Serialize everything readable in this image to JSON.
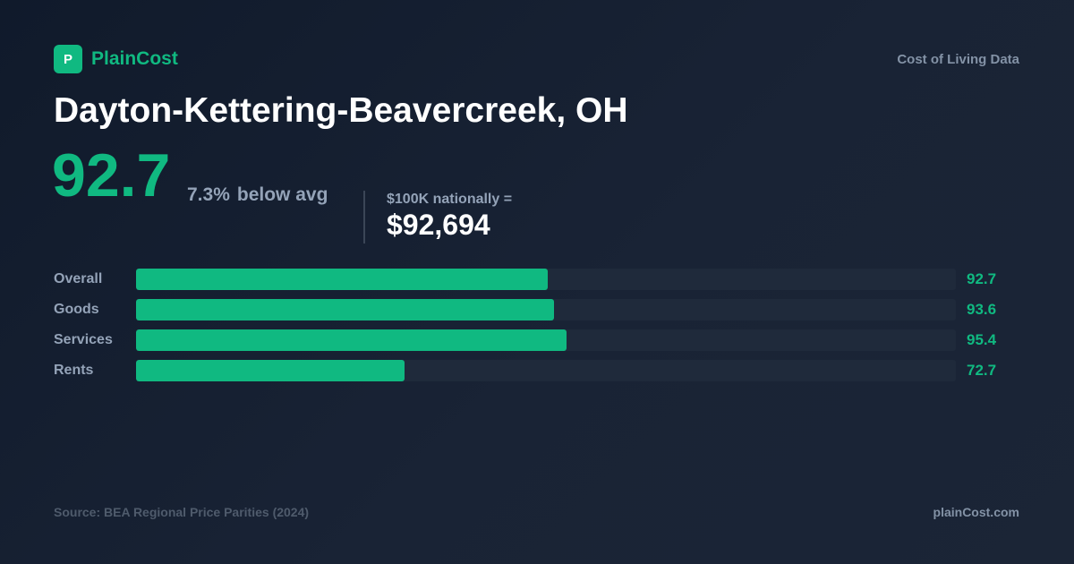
{
  "brand": {
    "logo_letter": "P",
    "name": "PlainCost",
    "tagline": "Cost of Living Data"
  },
  "colors": {
    "accent": "#10b981",
    "background": "#151f30",
    "track": "#1f2a3b",
    "muted": "#94a3b8"
  },
  "title": "Dayton-Kettering-Beavercreek, OH",
  "summary": {
    "index": "92.7",
    "delta_pct": "7.3%",
    "delta_text": "below avg",
    "national_label": "$100K nationally =",
    "national_value": "$92,694"
  },
  "chart_data": {
    "type": "bar",
    "orientation": "horizontal",
    "categories": [
      "Overall",
      "Goods",
      "Services",
      "Rents"
    ],
    "values": [
      92.7,
      93.6,
      95.4,
      72.7
    ],
    "value_labels": [
      "92.7",
      "93.6",
      "95.4",
      "72.7"
    ],
    "xlim": [
      35,
      150
    ],
    "grid": false
  },
  "footer": {
    "source": "Source: BEA Regional Price Parities (2024)",
    "site": "plainCost.com"
  }
}
